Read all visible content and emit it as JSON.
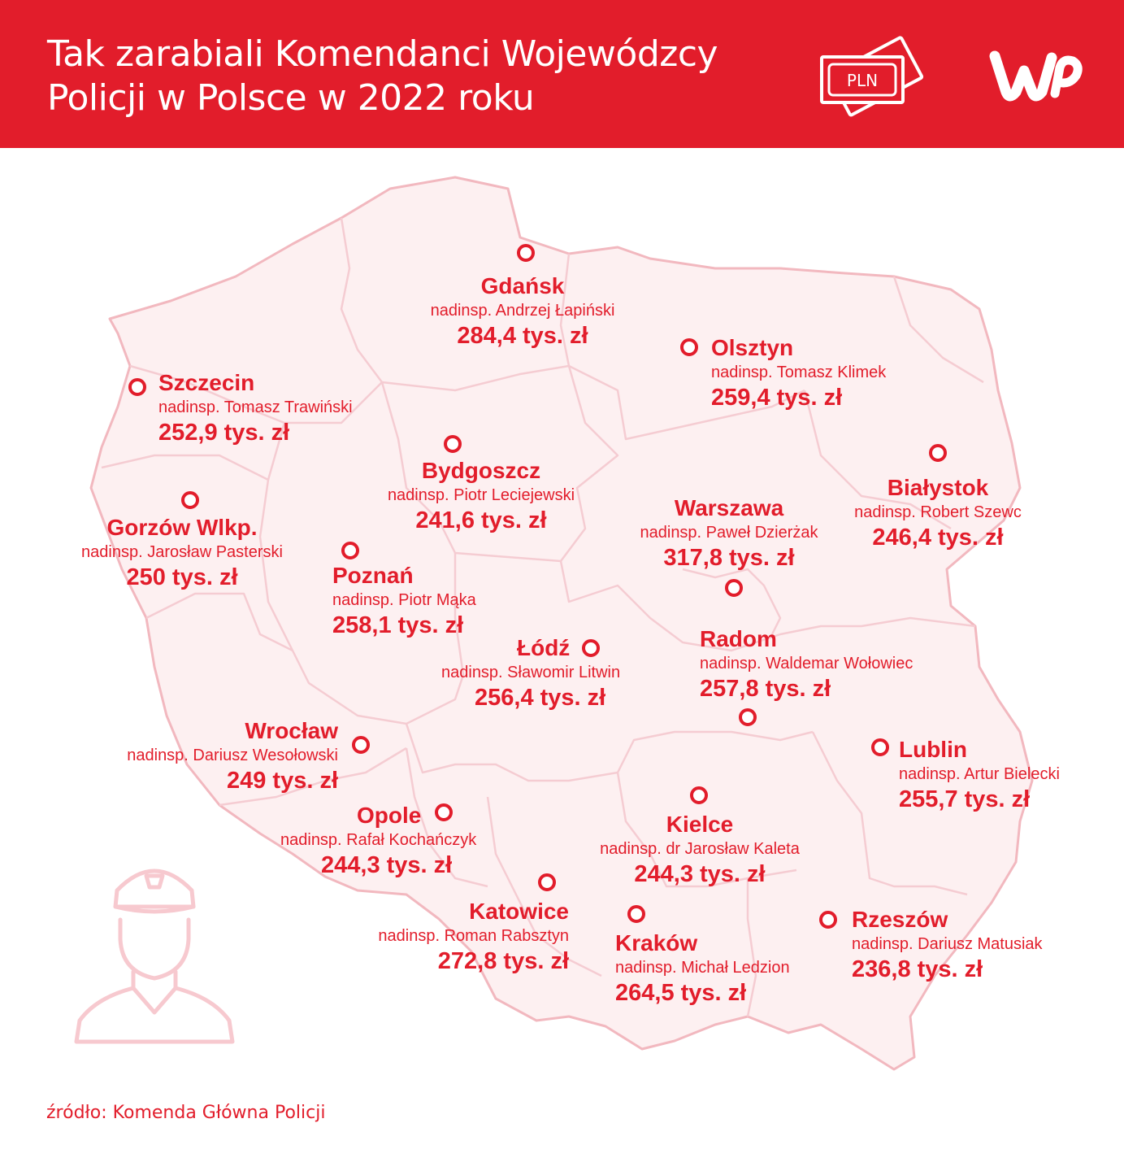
{
  "header": {
    "title_line1": "Tak zarabiali Komendanci Wojewódzcy",
    "title_line2": "Policji w Polsce w 2022 roku",
    "pln_label": "PLN",
    "background_color": "#e21d2b"
  },
  "colors": {
    "accent": "#e21d2b",
    "map_fill": "#fdf0f1",
    "map_border": "#f2b8bf"
  },
  "cities": [
    {
      "city": "Gdańsk",
      "person": "nadinsp. Andrzej Łapiński",
      "amount": "284,4 tys. zł"
    },
    {
      "city": "Olsztyn",
      "person": "nadinsp. Tomasz Klimek",
      "amount": "259,4 tys. zł"
    },
    {
      "city": "Szczecin",
      "person": "nadinsp. Tomasz Trawiński",
      "amount": "252,9 tys. zł"
    },
    {
      "city": "Bydgoszcz",
      "person": "nadinsp. Piotr Leciejewski",
      "amount": "241,6 tys. zł"
    },
    {
      "city": "Białystok",
      "person": "nadinsp. Robert Szewc",
      "amount": "246,4 tys. zł"
    },
    {
      "city": "Gorzów Wlkp.",
      "person": "nadinsp. Jarosław Pasterski",
      "amount": "250 tys. zł"
    },
    {
      "city": "Warszawa",
      "person": "nadinsp. Paweł Dzierżak",
      "amount": "317,8 tys. zł"
    },
    {
      "city": "Poznań",
      "person": "nadinsp. Piotr Mąka",
      "amount": "258,1 tys. zł"
    },
    {
      "city": "Radom",
      "person": "nadinsp. Waldemar Wołowiec",
      "amount": "257,8 tys. zł"
    },
    {
      "city": "Łódź",
      "person": "nadinsp. Sławomir Litwin",
      "amount": "256,4 tys. zł"
    },
    {
      "city": "Wrocław",
      "person": "nadinsp. Dariusz Wesołowski",
      "amount": "249 tys. zł"
    },
    {
      "city": "Lublin",
      "person": "nadinsp. Artur Bielecki",
      "amount": "255,7 tys. zł"
    },
    {
      "city": "Opole",
      "person": "nadinsp. Rafał Kochańczyk",
      "amount": "244,3 tys. zł"
    },
    {
      "city": "Kielce",
      "person": "nadinsp. dr Jarosław Kaleta",
      "amount": "244,3 tys. zł"
    },
    {
      "city": "Katowice",
      "person": "nadinsp. Roman Rabsztyn",
      "amount": "272,8 tys. zł"
    },
    {
      "city": "Kraków",
      "person": "nadinsp. Michał Ledzion",
      "amount": "264,5 tys. zł"
    },
    {
      "city": "Rzeszów",
      "person": "nadinsp. Dariusz Matusiak",
      "amount": "236,8 tys. zł"
    }
  ],
  "icons": {
    "pln": "banknote-icon",
    "brand": "wp-logo",
    "officer": "police-officer-icon",
    "marker": "city-marker-icon"
  },
  "footer": {
    "source": "źródło: Komenda Główna Policji"
  }
}
